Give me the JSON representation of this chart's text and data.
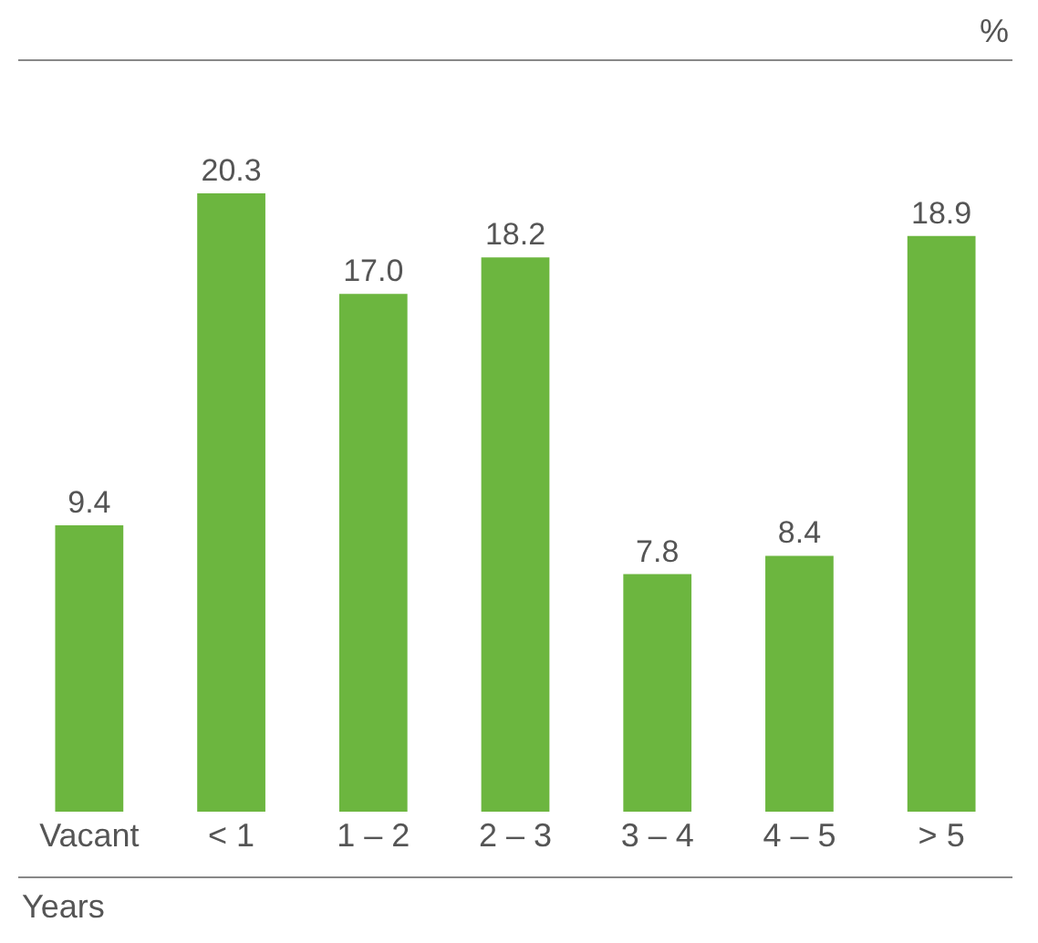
{
  "chart_data": {
    "type": "bar",
    "categories": [
      "Vacant",
      "< 1",
      "1 – 2",
      "2 – 3",
      "3 – 4",
      "4 – 5",
      "> 5"
    ],
    "values": [
      9.4,
      20.3,
      17.0,
      18.2,
      7.8,
      8.4,
      18.9
    ],
    "value_labels": [
      "9.4",
      "20.3",
      "17.0",
      "18.2",
      "7.8",
      "8.4",
      "18.9"
    ],
    "color": "#6cb63f",
    "xlabel": "Years",
    "ylabel": "%"
  }
}
